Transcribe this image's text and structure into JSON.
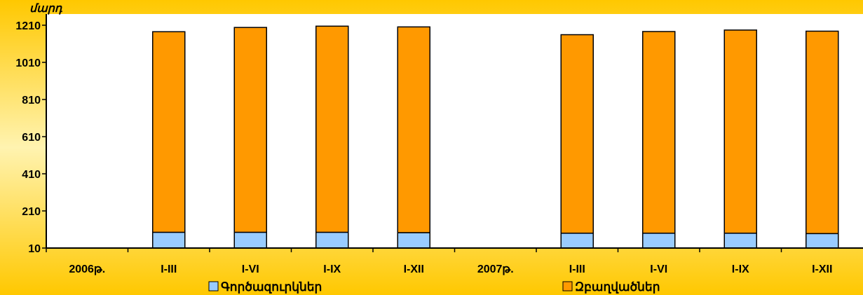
{
  "chart_data": {
    "type": "bar",
    "stacked": true,
    "unit_label": "մարդ",
    "categories": [
      "2006թ.",
      "I-III",
      "I-VI",
      "I-IX",
      "I-XII",
      "2007թ.",
      "I-III",
      "I-VI",
      "I-IX",
      "I-XII"
    ],
    "series": [
      {
        "name": "Գործազուրկներ",
        "color": "#99ccff",
        "values": [
          null,
          85,
          85,
          85,
          83,
          null,
          80,
          80,
          80,
          78
        ]
      },
      {
        "name": "Զբաղվածներ",
        "color": "#ff9900",
        "values": [
          null,
          1080,
          1103,
          1110,
          1108,
          null,
          1069,
          1086,
          1094,
          1090
        ]
      }
    ],
    "ylim": [
      10,
      1210
    ],
    "yticks": [
      10,
      210,
      410,
      610,
      810,
      1010,
      1210
    ],
    "grid": false,
    "legend_position": "bottom",
    "colors": {
      "background_gradient": [
        "#fff2cc",
        "#ffcc00"
      ],
      "plot_area": "#ffffff"
    }
  }
}
